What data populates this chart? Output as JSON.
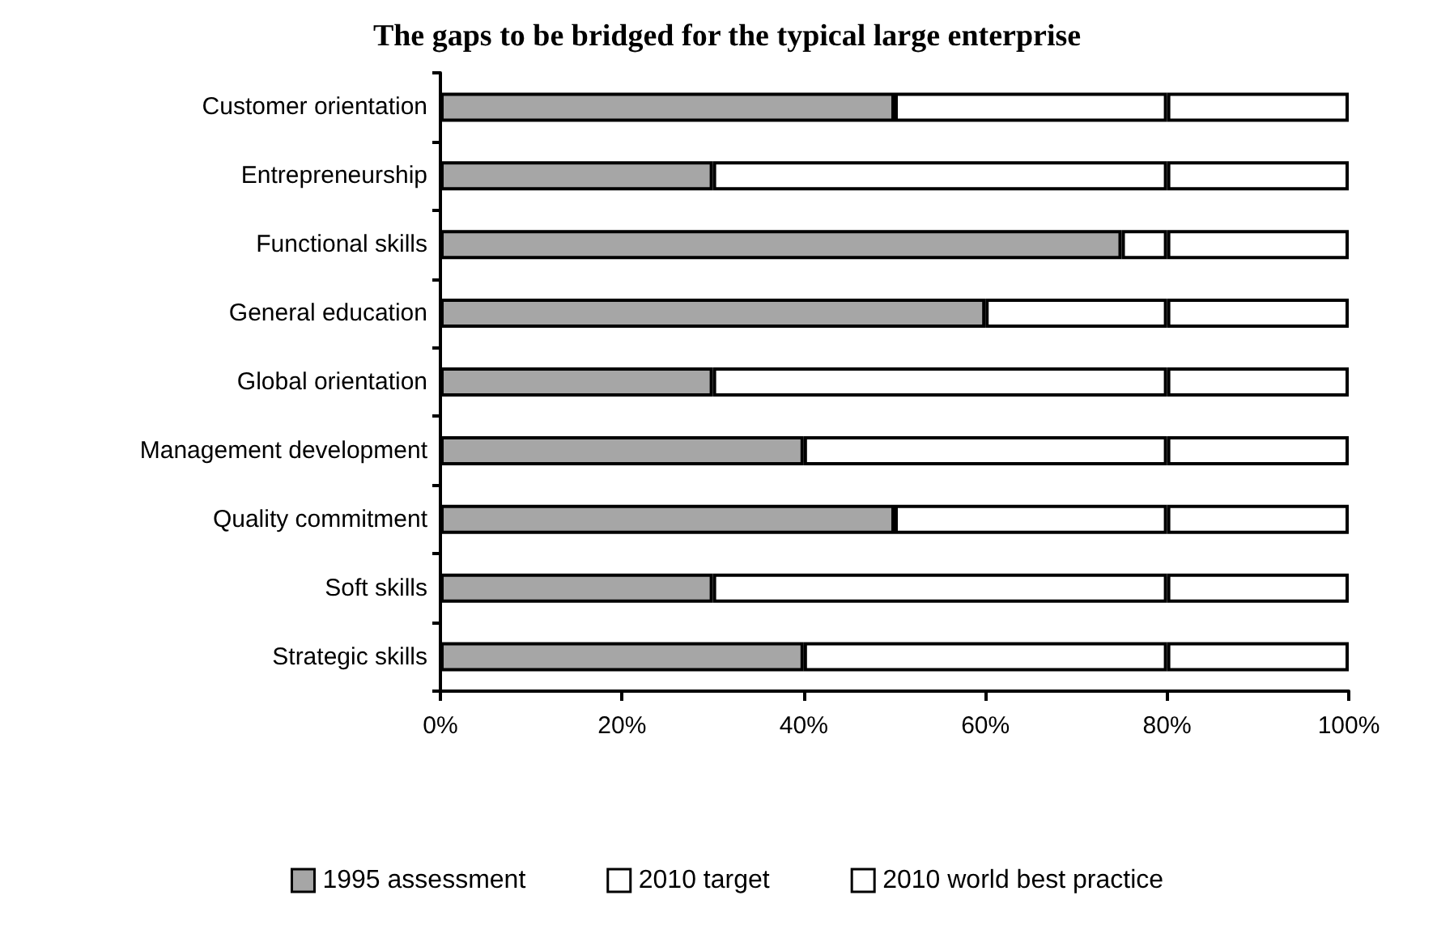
{
  "chart_data": {
    "type": "bar",
    "orientation": "horizontal",
    "stacked": true,
    "title": "The gaps to be bridged for the typical large enterprise",
    "categories": [
      "Customer orientation",
      "Entrepreneurship",
      "Functional skills",
      "General education",
      "Global orientation",
      "Management development",
      "Quality commitment",
      "Soft skills",
      "Strategic skills"
    ],
    "series": [
      {
        "name": "1995 assessment",
        "color": "#a6a6a6",
        "values": [
          50,
          30,
          75,
          60,
          30,
          40,
          50,
          30,
          40
        ]
      },
      {
        "name": "2010 target",
        "color": "#ffffff",
        "values": [
          30,
          50,
          5,
          20,
          50,
          40,
          30,
          50,
          40
        ]
      },
      {
        "name": "2010 world best practice",
        "color": "#ffffff",
        "values": [
          20,
          20,
          20,
          20,
          20,
          20,
          20,
          20,
          20
        ]
      }
    ],
    "xlim": [
      0,
      100
    ],
    "xticks": [
      {
        "value": 0,
        "label": "0%"
      },
      {
        "value": 20,
        "label": "20%"
      },
      {
        "value": 40,
        "label": "40%"
      },
      {
        "value": 60,
        "label": "60%"
      },
      {
        "value": 80,
        "label": "80%"
      },
      {
        "value": 100,
        "label": "100%"
      }
    ],
    "grid": false,
    "legend": "bottom"
  }
}
